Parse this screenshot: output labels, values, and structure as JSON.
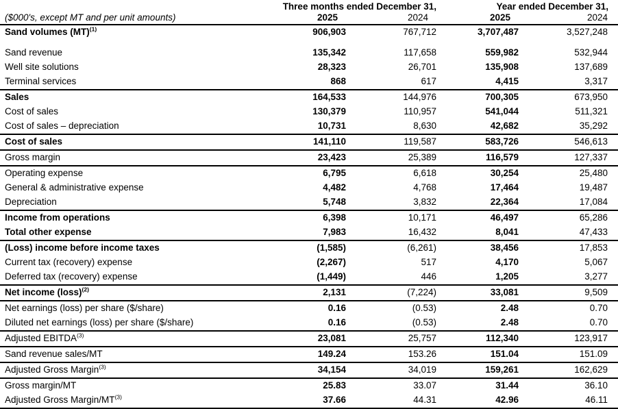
{
  "header": {
    "unit_note": "($000's, except MT and per unit amounts)",
    "groups": [
      {
        "label": "Three months ended December 31,",
        "years": [
          "2025",
          "2024"
        ]
      },
      {
        "label": "Year ended December 31,",
        "years": [
          "2025",
          "2024"
        ]
      }
    ]
  },
  "rows": [
    {
      "label": "Sand volumes (MT)",
      "sup": "(1)",
      "bold": true,
      "gap_after": true,
      "values": [
        "906,903",
        "767,712",
        "3,707,487",
        "3,527,248"
      ]
    },
    {
      "label": "Sand revenue",
      "bold": false,
      "values": [
        "135,342",
        "117,658",
        "559,982",
        "532,944"
      ]
    },
    {
      "label": "Well site solutions",
      "bold": false,
      "values": [
        "28,323",
        "26,701",
        "135,908",
        "137,689"
      ]
    },
    {
      "label": "Terminal services",
      "bold": false,
      "rule_after": true,
      "values": [
        "868",
        "617",
        "4,415",
        "3,317"
      ]
    },
    {
      "label": "Sales",
      "bold": true,
      "values": [
        "164,533",
        "144,976",
        "700,305",
        "673,950"
      ]
    },
    {
      "label": "Cost of sales",
      "bold": false,
      "values": [
        "130,379",
        "110,957",
        "541,044",
        "511,321"
      ]
    },
    {
      "label": "Cost of sales – depreciation",
      "bold": false,
      "rule_after": true,
      "values": [
        "10,731",
        "8,630",
        "42,682",
        "35,292"
      ]
    },
    {
      "label": "Cost of sales",
      "bold": true,
      "rule_after": true,
      "values": [
        "141,110",
        "119,587",
        "583,726",
        "546,613"
      ]
    },
    {
      "label": "Gross margin",
      "bold": false,
      "rule_after": true,
      "values": [
        "23,423",
        "25,389",
        "116,579",
        "127,337"
      ]
    },
    {
      "label": "Operating expense",
      "bold": false,
      "values": [
        "6,795",
        "6,618",
        "30,254",
        "25,480"
      ]
    },
    {
      "label": "General & administrative expense",
      "bold": false,
      "values": [
        "4,482",
        "4,768",
        "17,464",
        "19,487"
      ]
    },
    {
      "label": "Depreciation",
      "bold": false,
      "rule_after": true,
      "values": [
        "5,748",
        "3,832",
        "22,364",
        "17,084"
      ]
    },
    {
      "label": "Income from operations",
      "bold": true,
      "values": [
        "6,398",
        "10,171",
        "46,497",
        "65,286"
      ]
    },
    {
      "label": "Total other expense",
      "bold": true,
      "rule_after": true,
      "values": [
        "7,983",
        "16,432",
        "8,041",
        "47,433"
      ]
    },
    {
      "label": "(Loss) income before income taxes",
      "bold": true,
      "values": [
        "(1,585)",
        "(6,261)",
        "38,456",
        "17,853"
      ]
    },
    {
      "label": "Current tax (recovery) expense",
      "bold": false,
      "values": [
        "(2,267)",
        "517",
        "4,170",
        "5,067"
      ]
    },
    {
      "label": "Deferred tax (recovery) expense",
      "bold": false,
      "rule_after": true,
      "values": [
        "(1,449)",
        "446",
        "1,205",
        "3,277"
      ]
    },
    {
      "label": "Net income (loss)",
      "sup": "(2)",
      "bold": true,
      "rule_after": true,
      "values": [
        "2,131",
        "(7,224)",
        "33,081",
        "9,509"
      ]
    },
    {
      "label": "Net earnings (loss) per share ($/share)",
      "bold": false,
      "values": [
        "0.16",
        "(0.53)",
        "2.48",
        "0.70"
      ]
    },
    {
      "label": "Diluted net earnings (loss) per share ($/share)",
      "bold": false,
      "rule_after": true,
      "values": [
        "0.16",
        "(0.53)",
        "2.48",
        "0.70"
      ]
    },
    {
      "label": "Adjusted EBITDA",
      "sup": "(3)",
      "bold": false,
      "rule_after": true,
      "values": [
        "23,081",
        "25,757",
        "112,340",
        "123,917"
      ]
    },
    {
      "label": "Sand revenue sales/MT",
      "bold": false,
      "rule_after": true,
      "values": [
        "149.24",
        "153.26",
        "151.04",
        "151.09"
      ]
    },
    {
      "label": "Adjusted Gross Margin",
      "sup": "(3)",
      "bold": false,
      "rule_after": true,
      "values": [
        "34,154",
        "34,019",
        "159,261",
        "162,629"
      ]
    },
    {
      "label": "Gross margin/MT",
      "bold": false,
      "values": [
        "25.83",
        "33.07",
        "31.44",
        "36.10"
      ]
    },
    {
      "label": "Adjusted Gross Margin/MT",
      "sup": "(3)",
      "bold": false,
      "rule_after": true,
      "values": [
        "37.66",
        "44.31",
        "42.96",
        "46.11"
      ]
    }
  ]
}
